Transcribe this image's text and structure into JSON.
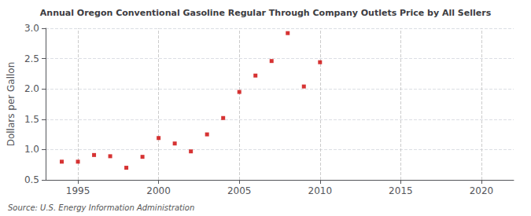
{
  "chart_data": {
    "type": "scatter",
    "title": "Annual Oregon Conventional Gasoline Regular Through Company Outlets Price by All Sellers",
    "ylabel": "Dollars per Gallon",
    "annotation": "Source: U.S. Energy Information Administration",
    "x": [
      1994,
      1995,
      1996,
      1997,
      1998,
      1999,
      2000,
      2001,
      2002,
      2003,
      2004,
      2005,
      2006,
      2007,
      2008,
      2009,
      2010
    ],
    "values": [
      0.8,
      0.8,
      0.91,
      0.89,
      0.7,
      0.88,
      1.19,
      1.1,
      0.97,
      1.25,
      1.52,
      1.95,
      2.22,
      2.46,
      2.92,
      2.04,
      2.44
    ],
    "color": "#cc0000",
    "marker": "square",
    "xlim": [
      1993,
      2022
    ],
    "ylim": [
      0.5,
      3.0
    ],
    "xticks": [
      1995,
      2000,
      2005,
      2010,
      2015,
      2020
    ],
    "yticks": [
      {
        "value": 0.5,
        "label": "0.5"
      },
      {
        "value": 1.0,
        "label": "1.0"
      },
      {
        "value": 1.5,
        "label": "1.5"
      },
      {
        "value": 2.0,
        "label": "2.0"
      },
      {
        "value": 2.5,
        "label": "2.5"
      },
      {
        "value": 3.0,
        "label": "3.0"
      }
    ],
    "grid": true
  }
}
